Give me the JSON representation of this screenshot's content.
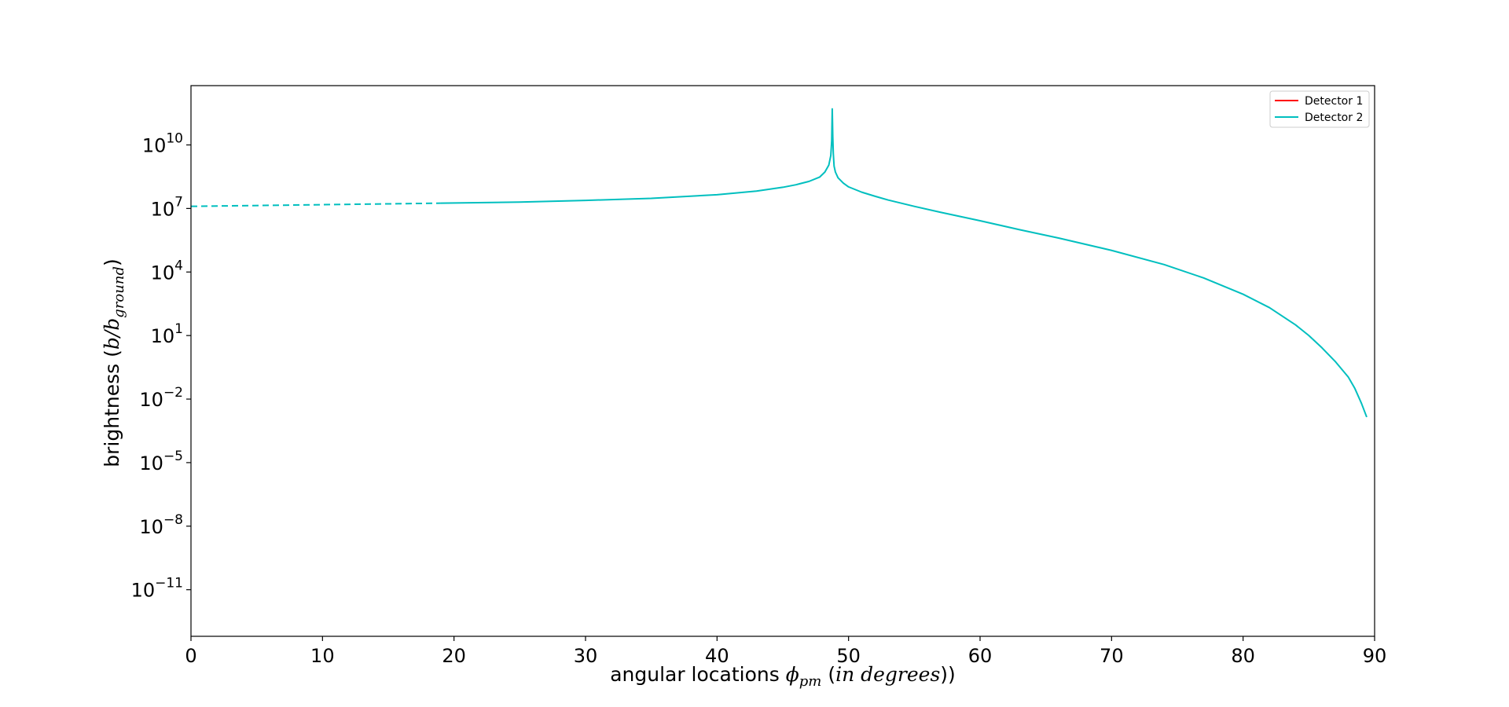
{
  "chart_data": {
    "type": "line",
    "title": "",
    "xlabel": {
      "prefix": "angular locations ",
      "symbol": "ϕ",
      "subscript": "pm",
      "open": " (",
      "italic": "in degrees",
      "close": "))"
    },
    "ylabel": {
      "prefix": "brightness (",
      "symbol": "b/b",
      "subscript": "ground",
      "close": ")"
    },
    "xlim": [
      0,
      90
    ],
    "ylim_log10": [
      -13.2,
      12.8
    ],
    "yscale": "log",
    "grid": false,
    "legend_position": "top-right",
    "x_ticks": [
      {
        "value": 0,
        "label": "0"
      },
      {
        "value": 10,
        "label": "10"
      },
      {
        "value": 20,
        "label": "20"
      },
      {
        "value": 30,
        "label": "30"
      },
      {
        "value": 40,
        "label": "40"
      },
      {
        "value": 50,
        "label": "50"
      },
      {
        "value": 60,
        "label": "60"
      },
      {
        "value": 70,
        "label": "70"
      },
      {
        "value": 80,
        "label": "80"
      },
      {
        "value": 90,
        "label": "90"
      }
    ],
    "y_ticks": [
      {
        "exp": 10,
        "base": "10",
        "sup": "10"
      },
      {
        "exp": 7,
        "base": "10",
        "sup": "7"
      },
      {
        "exp": 4,
        "base": "10",
        "sup": "4"
      },
      {
        "exp": 1,
        "base": "10",
        "sup": "1"
      },
      {
        "exp": -2,
        "base": "10",
        "sup": "−2"
      },
      {
        "exp": -5,
        "base": "10",
        "sup": "−5"
      },
      {
        "exp": -8,
        "base": "10",
        "sup": "−8"
      },
      {
        "exp": -11,
        "base": "10",
        "sup": "−11"
      }
    ],
    "series": [
      {
        "name": "Detector 1",
        "color": "#ff0000",
        "style": "solid",
        "x": [],
        "y_log10": []
      },
      {
        "name": "Detector 2",
        "color": "#00bfbf",
        "style": "solid",
        "x": [
          0,
          19,
          25,
          30,
          35,
          40,
          43,
          45,
          46,
          47,
          47.8,
          48.2,
          48.5,
          48.65,
          48.72,
          48.76,
          48.8,
          48.84,
          48.9,
          49.0,
          49.2,
          49.6,
          50,
          51,
          52,
          53,
          55,
          57,
          60,
          63,
          66,
          70,
          74,
          77,
          80,
          82,
          84,
          85,
          86,
          87,
          88,
          88.5,
          89,
          89.4
        ],
        "y_log10": [
          7.1,
          7.25,
          7.3,
          7.38,
          7.48,
          7.65,
          7.82,
          8.0,
          8.12,
          8.28,
          8.48,
          8.72,
          9.05,
          9.5,
          10.2,
          11.7,
          10.4,
          9.6,
          9.0,
          8.72,
          8.45,
          8.2,
          8.02,
          7.77,
          7.58,
          7.4,
          7.1,
          6.82,
          6.42,
          6.0,
          5.6,
          5.02,
          4.35,
          3.72,
          2.95,
          2.32,
          1.5,
          1.0,
          0.42,
          -0.22,
          -0.96,
          -1.5,
          -2.2,
          -2.85
        ]
      }
    ],
    "dashed_segment": {
      "series": "Detector 2",
      "x": [
        0,
        19
      ],
      "y_log10": [
        7.1,
        7.25
      ]
    }
  }
}
